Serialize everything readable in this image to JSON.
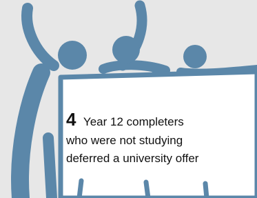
{
  "stat": {
    "number": "4",
    "lines": [
      "Year 12 completers",
      "who were not studying",
      "deferred a university offer"
    ]
  }
}
